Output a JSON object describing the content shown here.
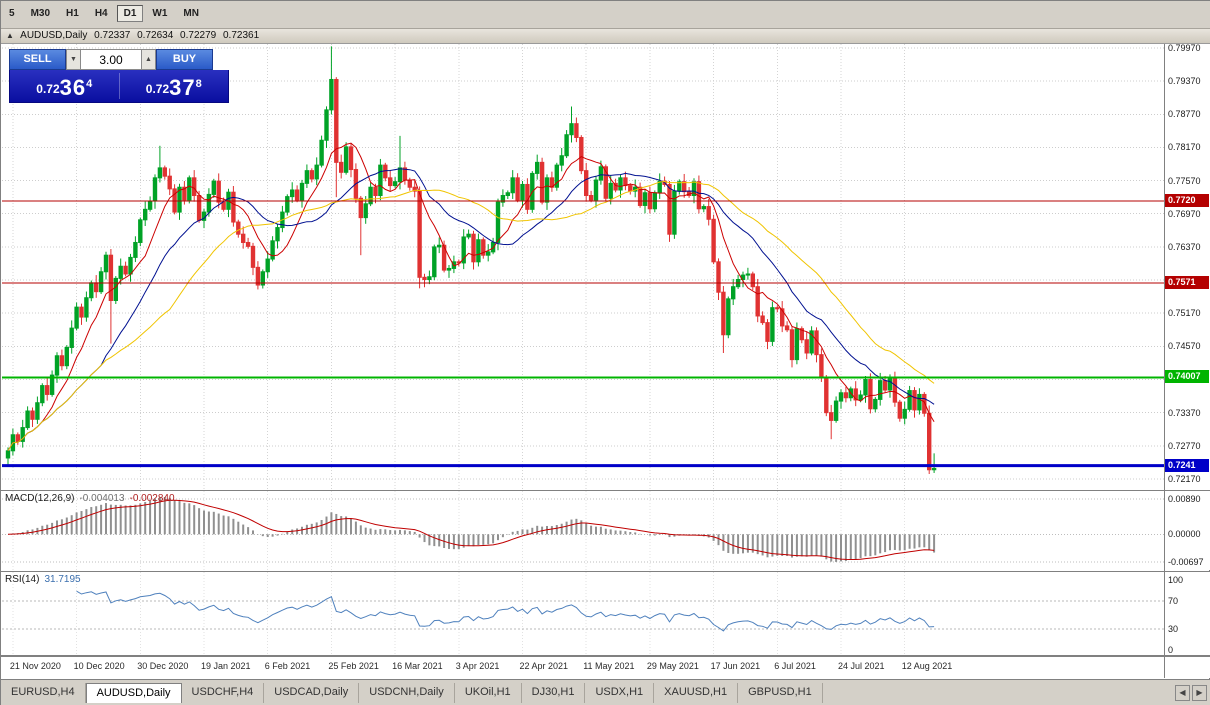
{
  "toolbar": {
    "timeframes": [
      "5",
      "M30",
      "H1",
      "H4",
      "D1",
      "W1",
      "MN"
    ],
    "active_timeframe": "D1"
  },
  "window": {
    "symbol_title": "AUDUSD,Daily",
    "open": "0.72337",
    "high": "0.72634",
    "low": "0.72279",
    "close": "0.72361"
  },
  "trade_panel": {
    "sell_label": "SELL",
    "buy_label": "BUY",
    "volume": "3.00",
    "sell_price": {
      "prefix": "0.72",
      "big": "36",
      "sup": "4"
    },
    "buy_price": {
      "prefix": "0.72",
      "big": "37",
      "sup": "8"
    }
  },
  "hlines": [
    {
      "label": "0.7720",
      "value": 0.772,
      "color": "#b40000",
      "thickness": 1
    },
    {
      "label": "0.7571",
      "value": 0.75716,
      "color": "#b40000",
      "thickness": 1
    },
    {
      "label": "0.74007",
      "value": 0.74007,
      "color": "#00b400",
      "thickness": 2
    },
    {
      "label": "0.7241",
      "value": 0.72411,
      "color": "#0000c8",
      "thickness": 3
    }
  ],
  "chart_data": {
    "type": "candlestick",
    "symbol": "AUDUSD",
    "timeframe": "Daily",
    "price_axis_labels": [
      "0.79970",
      "0.79370",
      "0.78770",
      "0.78170",
      "0.77570",
      "0.76970",
      "0.76370",
      "0.75770",
      "0.75170",
      "0.74570",
      "0.73970",
      "0.73370",
      "0.72770",
      "0.72170"
    ],
    "first_open": 0.7255,
    "closes": [
      0.7268,
      0.7297,
      0.7285,
      0.731,
      0.734,
      0.7325,
      0.7355,
      0.7386,
      0.737,
      0.7405,
      0.744,
      0.7422,
      0.7455,
      0.749,
      0.7528,
      0.751,
      0.7545,
      0.7572,
      0.7556,
      0.7592,
      0.7622,
      0.754,
      0.758,
      0.7602,
      0.7588,
      0.7618,
      0.7645,
      0.7686,
      0.7705,
      0.772,
      0.7762,
      0.778,
      0.7765,
      0.7742,
      0.77,
      0.7745,
      0.7722,
      0.7762,
      0.773,
      0.7685,
      0.77,
      0.7732,
      0.7756,
      0.7718,
      0.7705,
      0.7736,
      0.7682,
      0.766,
      0.7645,
      0.7638,
      0.76,
      0.7568,
      0.7592,
      0.7615,
      0.7648,
      0.7672,
      0.77,
      0.7728,
      0.774,
      0.7722,
      0.7752,
      0.7775,
      0.776,
      0.7785,
      0.783,
      0.7885,
      0.794,
      0.779,
      0.7772,
      0.7818,
      0.7777,
      0.7725,
      0.769,
      0.7715,
      0.7745,
      0.773,
      0.7785,
      0.7762,
      0.7748,
      0.7755,
      0.778,
      0.7758,
      0.7745,
      0.7738,
      0.7582,
      0.7578,
      0.7583,
      0.7637,
      0.764,
      0.7595,
      0.7598,
      0.761,
      0.7608,
      0.7655,
      0.766,
      0.761,
      0.765,
      0.7622,
      0.7628,
      0.7645,
      0.7718,
      0.773,
      0.7735,
      0.7762,
      0.7722,
      0.775,
      0.7705,
      0.777,
      0.779,
      0.7718,
      0.7762,
      0.7745,
      0.7785,
      0.7802,
      0.784,
      0.786,
      0.7835,
      0.7775,
      0.773,
      0.7722,
      0.7758,
      0.7782,
      0.7725,
      0.7752,
      0.774,
      0.7762,
      0.7748,
      0.7738,
      0.7745,
      0.7712,
      0.7735,
      0.7706,
      0.7735,
      0.7756,
      0.775,
      0.766,
      0.7738,
      0.7755,
      0.7737,
      0.773,
      0.7755,
      0.7706,
      0.771,
      0.7687,
      0.761,
      0.7555,
      0.7478,
      0.7543,
      0.7565,
      0.7578,
      0.7586,
      0.7588,
      0.7565,
      0.7512,
      0.75,
      0.7466,
      0.7527,
      0.7525,
      0.7494,
      0.7487,
      0.7433,
      0.7489,
      0.7469,
      0.7445,
      0.7485,
      0.7442,
      0.7401,
      0.7337,
      0.7323,
      0.7358,
      0.7373,
      0.7364,
      0.738,
      0.736,
      0.7369,
      0.7397,
      0.7344,
      0.7361,
      0.7395,
      0.7378,
      0.74,
      0.7356,
      0.7327,
      0.7343,
      0.7377,
      0.7342,
      0.737,
      0.7336,
      0.72337,
      0.72361
    ],
    "overrides": {
      "21": {
        "l": 0.7462
      },
      "31": {
        "h": 0.782
      },
      "51": {
        "l": 0.756
      },
      "66": {
        "h": 0.8
      },
      "67": {
        "l": 0.7727
      },
      "72": {
        "l": 0.7622
      },
      "80": {
        "h": 0.7838
      },
      "84": {
        "l": 0.7562
      },
      "115": {
        "h": 0.7891
      },
      "146": {
        "l": 0.7445
      },
      "168": {
        "l": 0.7289
      },
      "188": {
        "l": 0.7226
      },
      "189": {
        "o": 0.72337,
        "h": 0.72634,
        "l": 0.72279,
        "c": 0.72361
      }
    },
    "date_labels": [
      {
        "t": "21 Nov 2020",
        "i": 1
      },
      {
        "t": "10 Dec 2020",
        "i": 14
      },
      {
        "t": "30 Dec 2020",
        "i": 27
      },
      {
        "t": "19 Jan 2021",
        "i": 40
      },
      {
        "t": "6 Feb 2021",
        "i": 53
      },
      {
        "t": "25 Feb 2021",
        "i": 66
      },
      {
        "t": "16 Mar 2021",
        "i": 79
      },
      {
        "t": "3 Apr 2021",
        "i": 92
      },
      {
        "t": "22 Apr 2021",
        "i": 105
      },
      {
        "t": "11 May 2021",
        "i": 118
      },
      {
        "t": "29 May 2021",
        "i": 131
      },
      {
        "t": "17 Jun 2021",
        "i": 144
      },
      {
        "t": "6 Jul 2021",
        "i": 157
      },
      {
        "t": "24 Jul 2021",
        "i": 170
      },
      {
        "t": "12 Aug 2021",
        "i": 183
      }
    ],
    "moving_averages": [
      {
        "period": 8,
        "color": "#cc0000"
      },
      {
        "period": 20,
        "color": "#001090"
      },
      {
        "period": 34,
        "color": "#f0c400"
      }
    ],
    "candle_up_color": "#00a226",
    "candle_down_color": "#e03232"
  },
  "macd_panel": {
    "name": "MACD(12,26,9)",
    "value_main": "-0.004013",
    "value_signal": "-0.002840",
    "axis_labels": [
      "0.00890",
      "0.00000",
      "-0.00697"
    ],
    "histogram_color": "#909090",
    "signal_color": "#c00000"
  },
  "rsi_panel": {
    "name": "RSI(14)",
    "value": "31.7195",
    "axis_labels": [
      "100",
      "70",
      "30",
      "0"
    ],
    "levels": [
      70,
      30
    ],
    "line_color": "#4f81bd"
  },
  "tabs": {
    "items": [
      "EURUSD,H4",
      "AUDUSD,Daily",
      "USDCHF,H4",
      "USDCAD,Daily",
      "USDCNH,Daily",
      "UKOil,H1",
      "DJ30,H1",
      "USDX,H1",
      "XAUUSD,H1",
      "GBPUSD,H1"
    ],
    "active": "AUDUSD,Daily"
  }
}
